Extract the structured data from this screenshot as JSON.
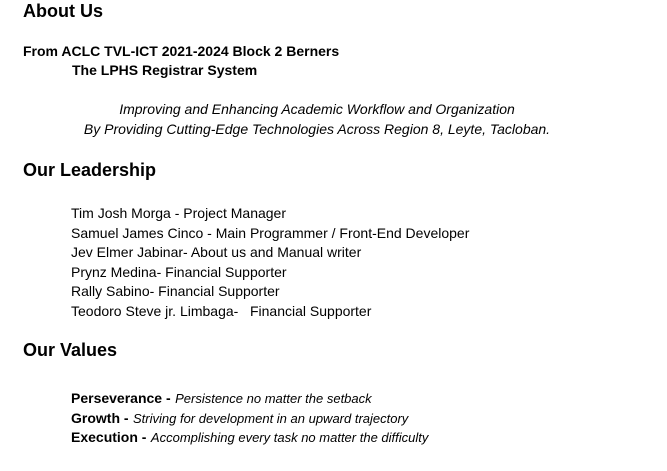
{
  "about": {
    "heading": "About Us",
    "org_line": "From ACLC TVL-ICT 2021-2024 Block 2 Berners",
    "system_name": "The LPHS Registrar System",
    "mission_line1": "Improving and Enhancing Academic Workflow and Organization",
    "mission_line2": "By Providing Cutting-Edge Technologies Across Region 8, Leyte, Tacloban."
  },
  "leadership": {
    "heading": "Our Leadership",
    "members": [
      "Tim Josh Morga - Project Manager",
      "Samuel James Cinco - Main Programmer / Front-End Developer",
      "Jev Elmer Jabinar- About us and Manual writer",
      "Prynz Medina- Financial Supporter",
      "Rally Sabino- Financial Supporter",
      "Teodoro Steve jr. Limbaga-   Financial Supporter"
    ]
  },
  "values": {
    "heading": "Our Values",
    "items": [
      {
        "name": "Perseverance -",
        "desc": "Persistence no matter the setback"
      },
      {
        "name": "Growth -",
        "desc": "Striving for development in an upward trajectory"
      },
      {
        "name": "Execution -",
        "desc": "Accomplishing every task no matter the difficulty"
      }
    ]
  }
}
